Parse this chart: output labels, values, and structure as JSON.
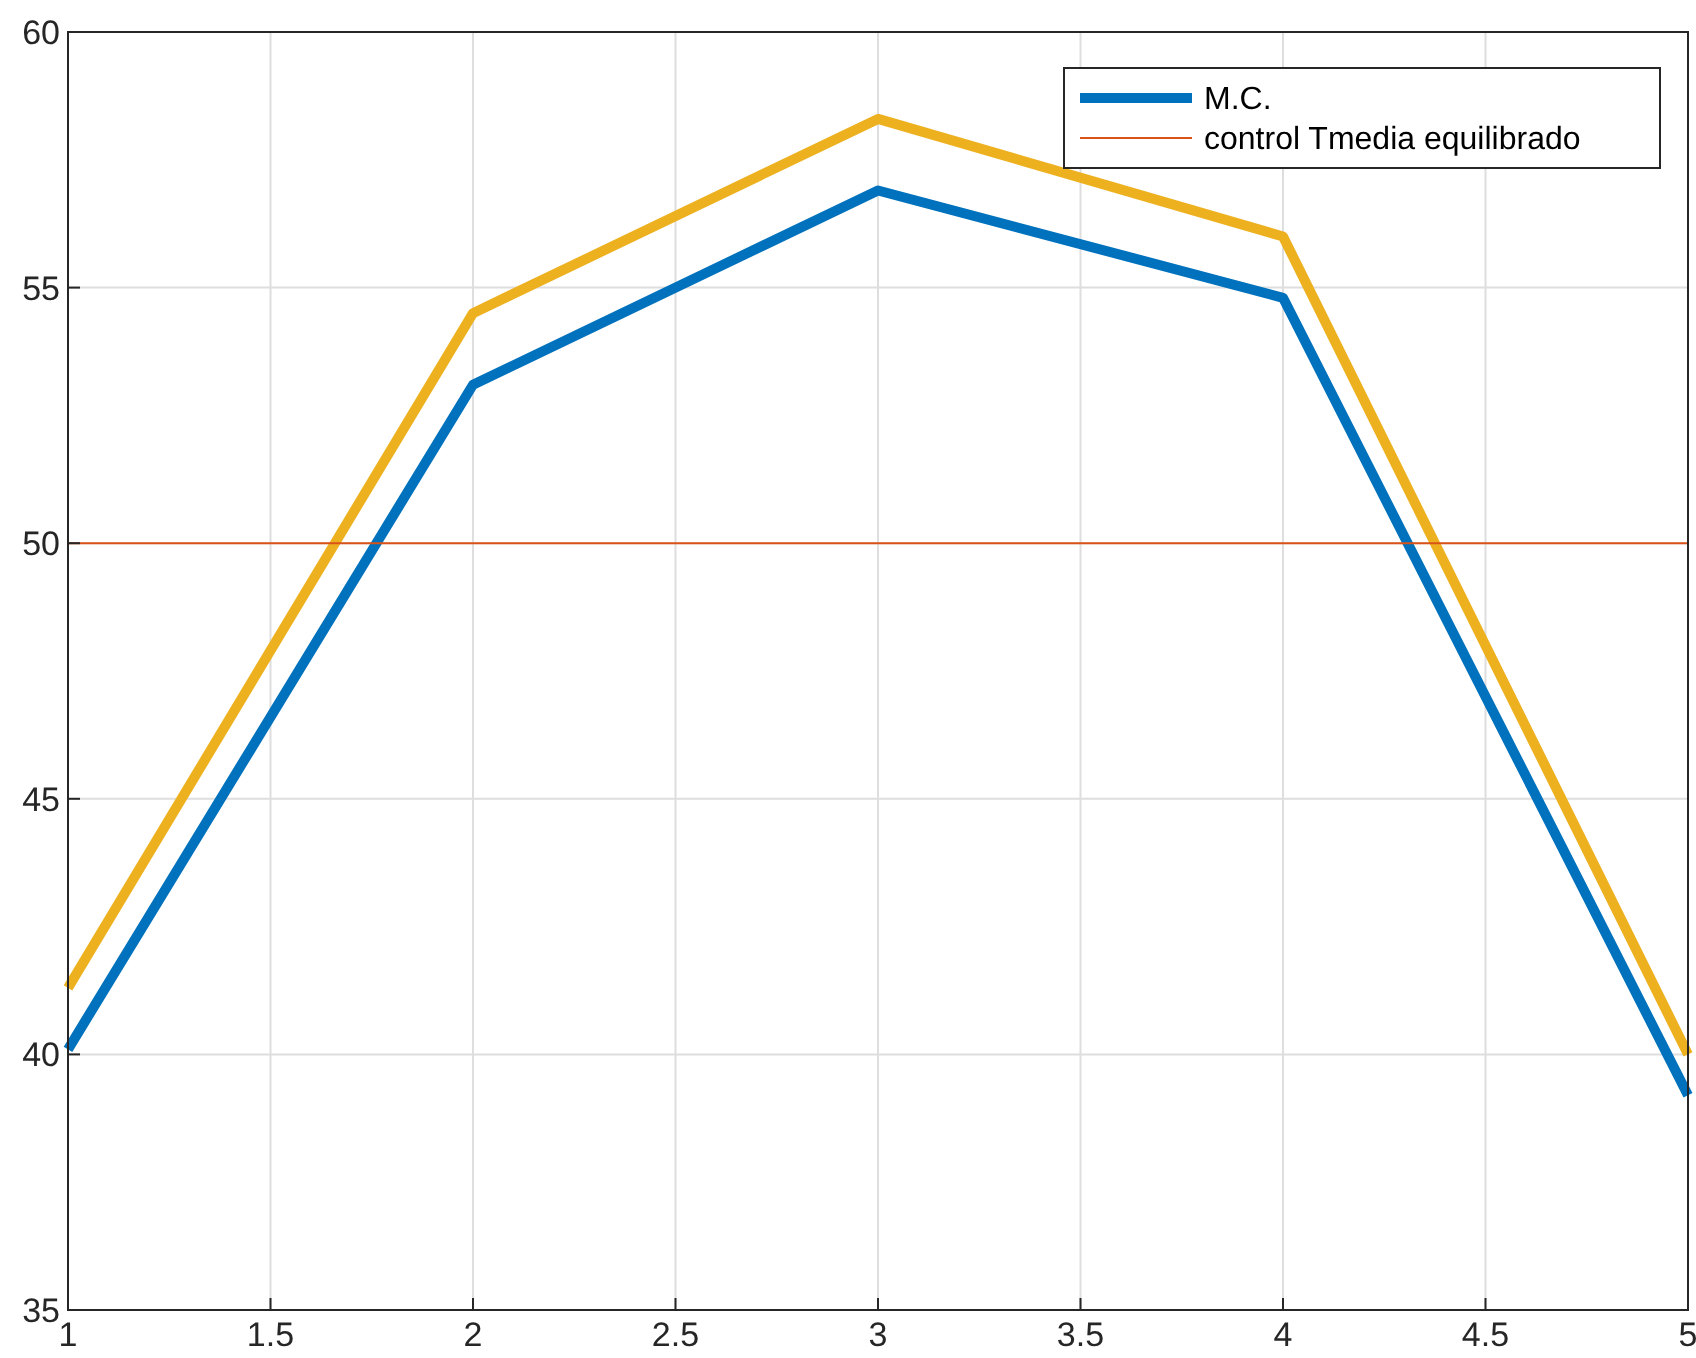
{
  "chart_data": {
    "type": "line",
    "x": [
      1,
      2,
      3,
      4,
      5
    ],
    "series": [
      {
        "name": "M.C.",
        "color": "#0072bd",
        "values": [
          40.1,
          53.1,
          56.9,
          54.8,
          39.2
        ]
      },
      {
        "color": "#edb120",
        "values": [
          41.3,
          54.5,
          58.3,
          56.0,
          40.0
        ]
      }
    ],
    "ref_lines": [
      {
        "axis": "y",
        "value": 50,
        "label": "control Tmedia equilibrado",
        "color": "#d95319"
      }
    ],
    "xlim": [
      1,
      5
    ],
    "xticks": [
      1,
      1.5,
      2,
      2.5,
      3,
      3.5,
      4,
      4.5,
      5
    ],
    "ylim": [
      35,
      60
    ],
    "yticks": [
      35,
      40,
      45,
      50,
      55,
      60
    ],
    "grid": true,
    "legend": "top right",
    "marker": "none",
    "line_style": "solid"
  }
}
